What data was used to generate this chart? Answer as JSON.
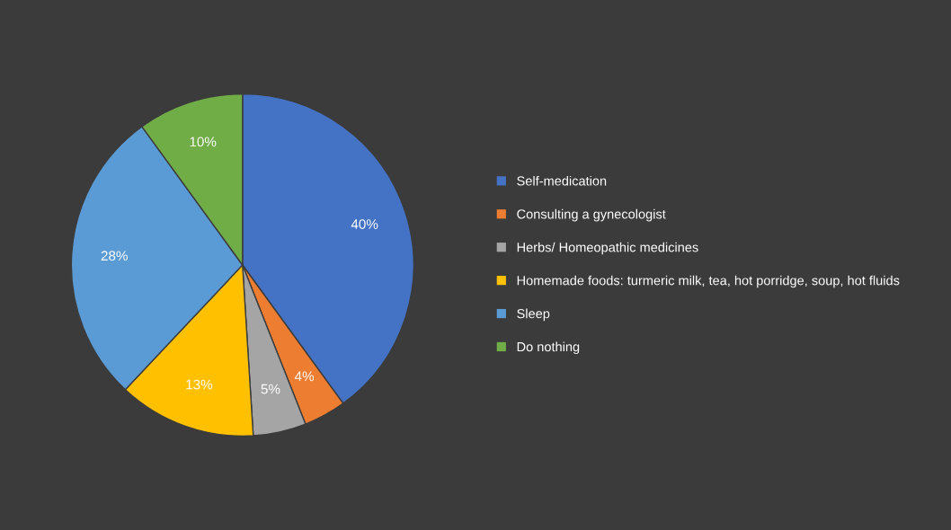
{
  "chart_data": {
    "type": "pie",
    "categories": [
      "Self-medication",
      "Consulting a gynecologist",
      "Herbs/ Homeopathic medicines",
      "Homemade foods: turmeric milk, tea, hot porridge, soup, hot fluids",
      "Sleep",
      "Do nothing"
    ],
    "values": [
      40,
      4,
      5,
      13,
      28,
      10
    ],
    "value_labels": [
      "40%",
      "4%",
      "5%",
      "13%",
      "28%",
      "10%"
    ],
    "colors": [
      "#4472c4",
      "#ed7d31",
      "#a5a5a5",
      "#ffc000",
      "#5b9bd5",
      "#70ad47"
    ],
    "legend": "right"
  }
}
